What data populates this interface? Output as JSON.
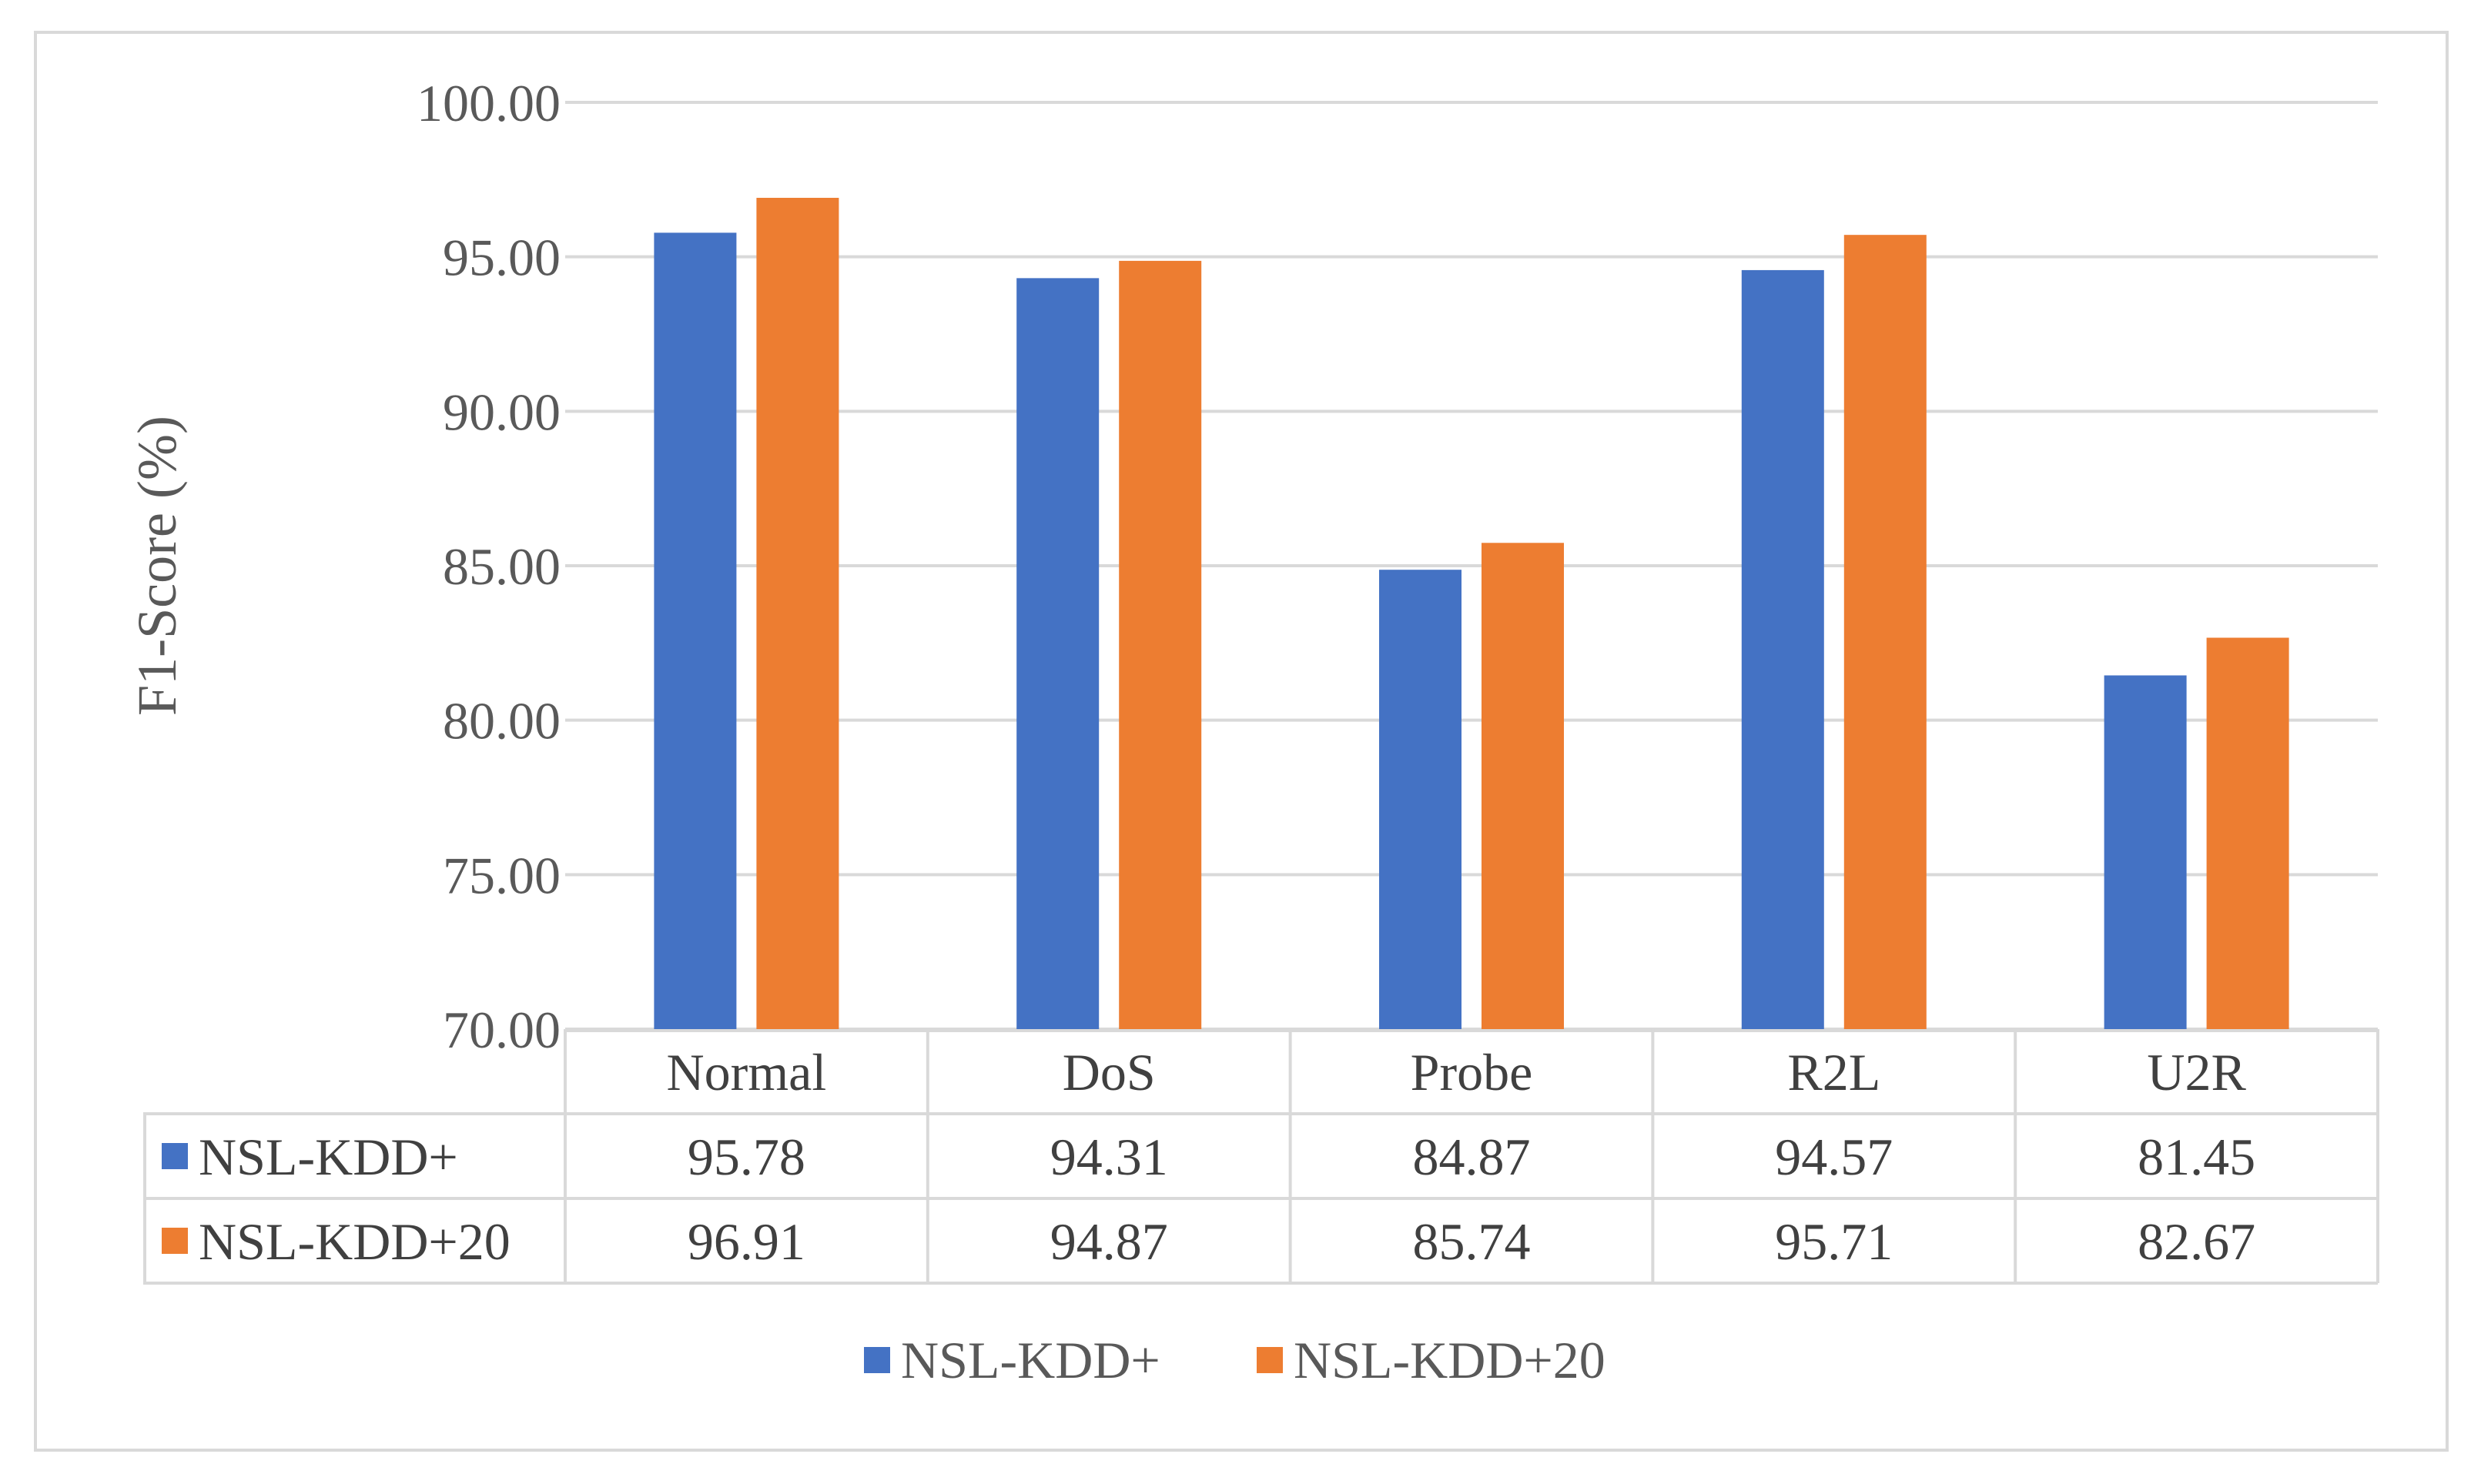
{
  "chart_data": {
    "type": "bar",
    "title": "",
    "xlabel": "",
    "ylabel": "F1-Score (%)",
    "ylim": [
      70,
      100
    ],
    "yticks": [
      "70.00",
      "75.00",
      "80.00",
      "85.00",
      "90.00",
      "95.00",
      "100.00"
    ],
    "categories": [
      "Normal",
      "DoS",
      "Probe",
      "R2L",
      "U2R"
    ],
    "series": [
      {
        "name": "NSL-KDD+",
        "color": "#4472C4",
        "values": [
          95.78,
          94.31,
          84.87,
          94.57,
          81.45
        ],
        "labels": [
          "95.78",
          "94.31",
          "84.87",
          "94.57",
          "81.45"
        ]
      },
      {
        "name": "NSL-KDD+20",
        "color": "#ED7D31",
        "values": [
          96.91,
          94.87,
          85.74,
          95.71,
          82.67
        ],
        "labels": [
          "96.91",
          "94.87",
          "85.74",
          "95.71",
          "82.67"
        ]
      }
    ],
    "grid": true,
    "legend": "bottom-center",
    "data_table": true
  }
}
